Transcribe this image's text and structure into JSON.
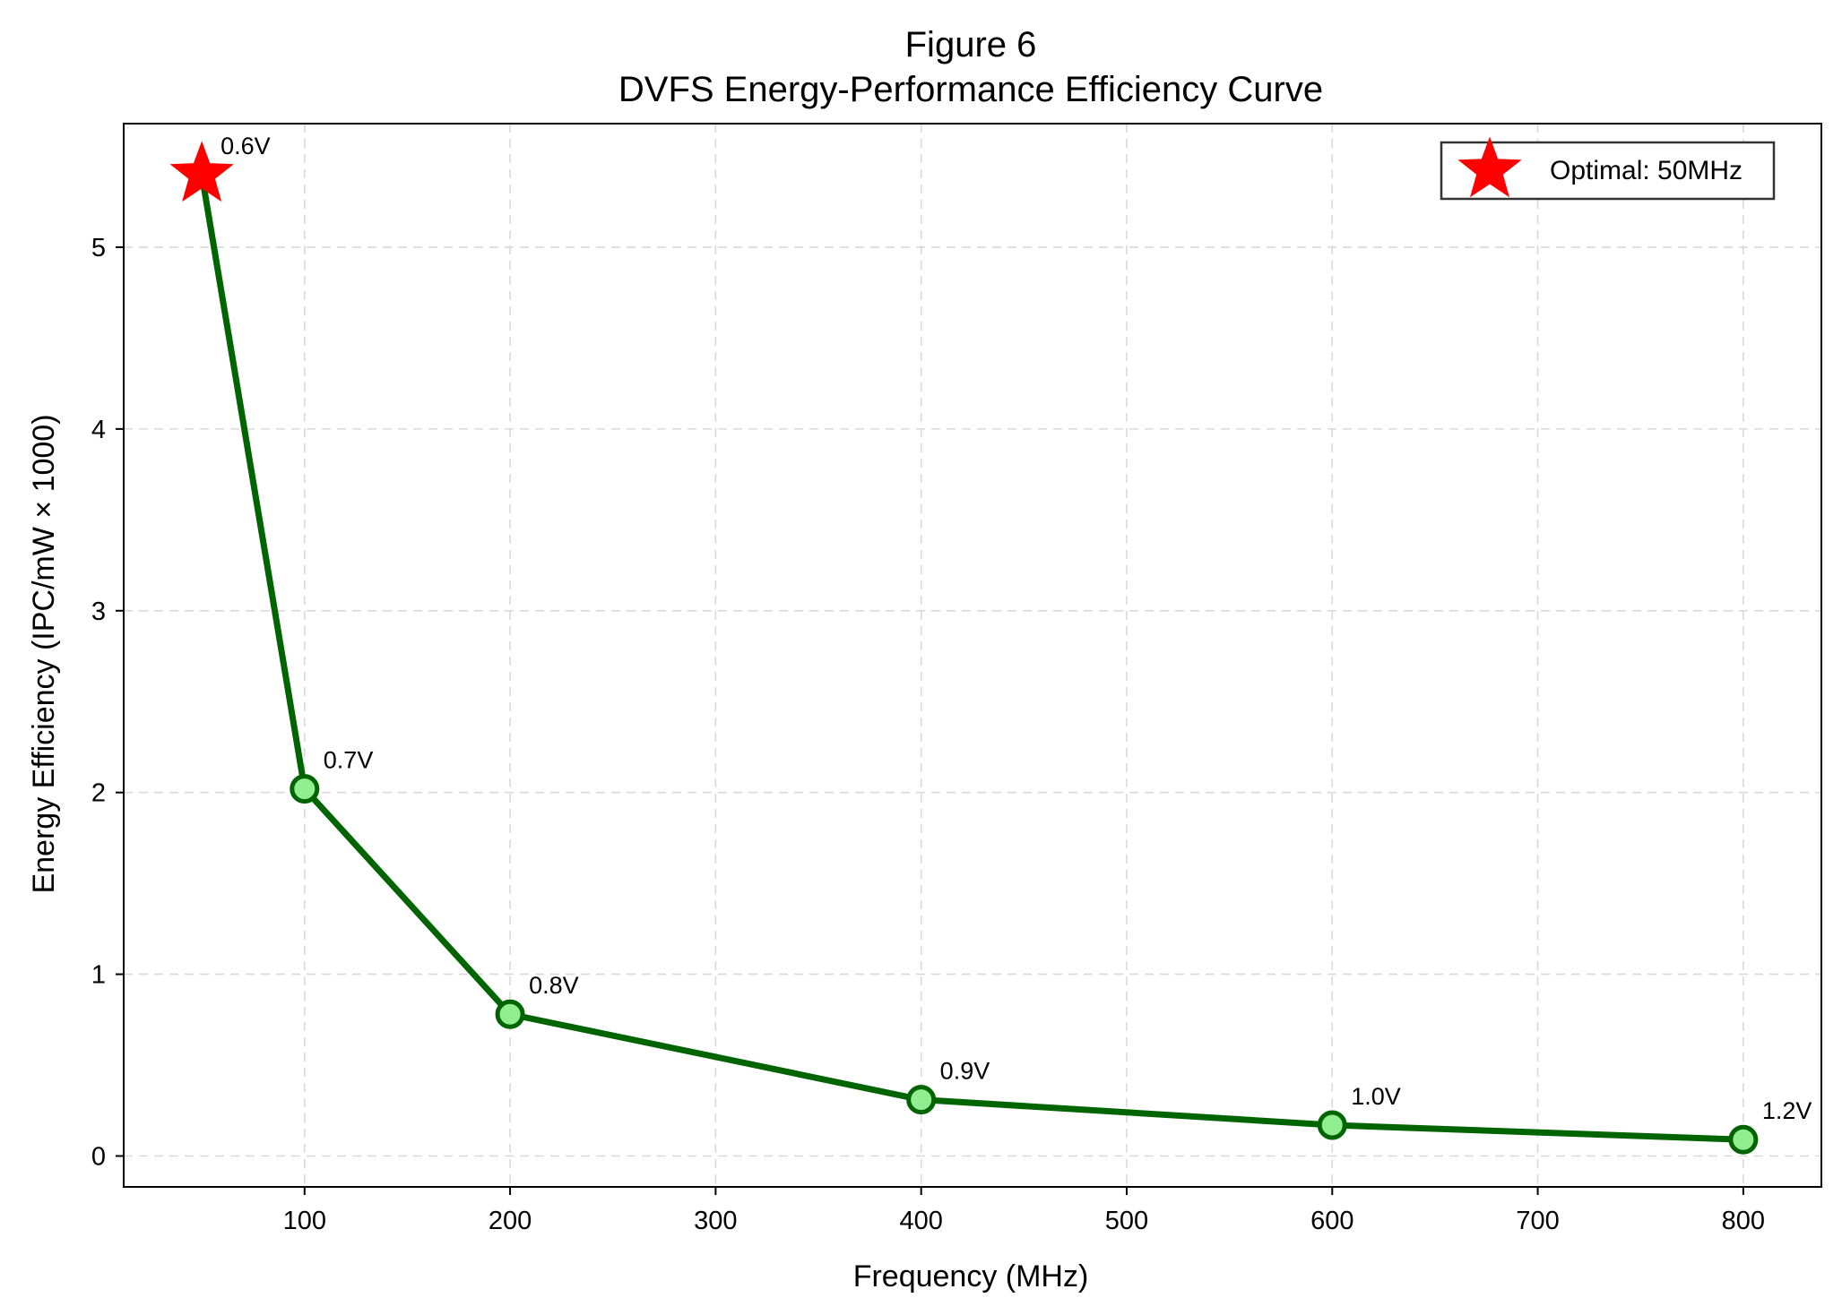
{
  "chart_data": {
    "type": "line",
    "title": "Figure 6",
    "subtitle": "DVFS Energy-Performance Efficiency Curve",
    "xlabel": "Frequency (MHz)",
    "ylabel": "Energy Efficiency (IPC/mW × 1000)",
    "xlim": [
      12,
      838
    ],
    "ylim": [
      -0.17,
      5.68
    ],
    "x_ticks": [
      100,
      200,
      300,
      400,
      500,
      600,
      700,
      800
    ],
    "y_ticks": [
      0,
      1,
      2,
      3,
      4,
      5
    ],
    "grid": true,
    "series": [
      {
        "x": [
          50,
          100,
          200,
          400,
          600,
          800
        ],
        "y": [
          5.4,
          2.02,
          0.78,
          0.31,
          0.17,
          0.09
        ],
        "color": "#006400",
        "marker_fill": "#90ee90"
      }
    ],
    "annotations": [
      {
        "x": 50,
        "y": 5.4,
        "text": "0.6V"
      },
      {
        "x": 100,
        "y": 2.02,
        "text": "0.7V"
      },
      {
        "x": 200,
        "y": 0.78,
        "text": "0.8V"
      },
      {
        "x": 400,
        "y": 0.31,
        "text": "0.9V"
      },
      {
        "x": 600,
        "y": 0.17,
        "text": "1.0V"
      },
      {
        "x": 800,
        "y": 0.09,
        "text": "1.2V"
      }
    ],
    "highlight": {
      "x": 50,
      "y": 5.4,
      "marker": "star",
      "color": "#ff0000"
    },
    "legend": {
      "position": "top-right",
      "entries": [
        {
          "label": "Optimal: 50MHz",
          "marker": "star",
          "color": "#ff0000"
        }
      ]
    }
  }
}
